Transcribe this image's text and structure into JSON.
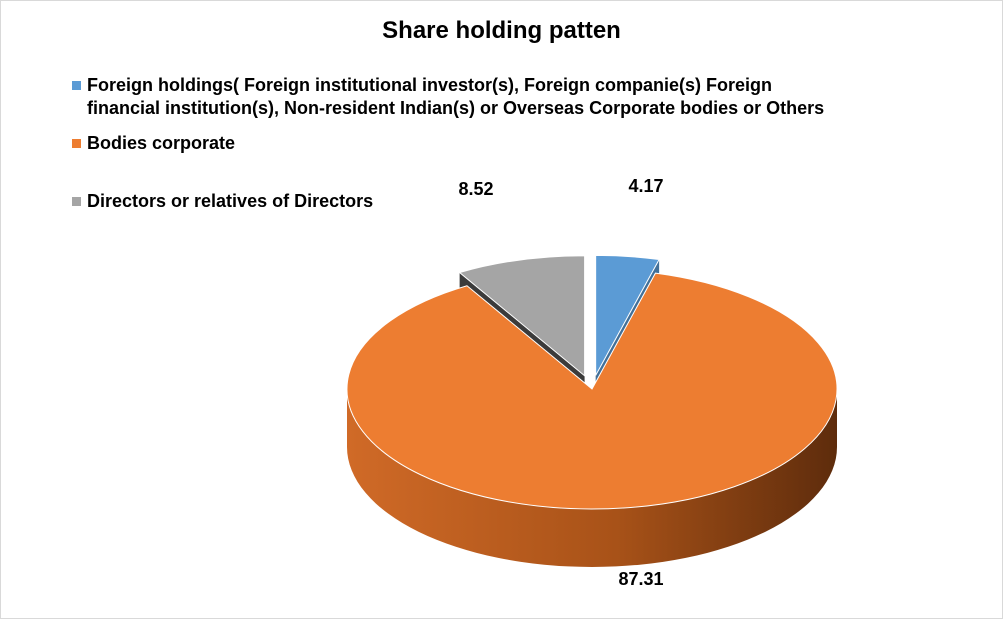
{
  "chart_data": {
    "type": "pie",
    "title": "Share holding patten",
    "style": "3d-exploded",
    "legend_position": "top",
    "slices": [
      {
        "name": "Foreign holdings( Foreign institutional investor(s), Foreign companie(s) Foreign financial institution(s), Non-resident Indian(s) or Overseas Corporate bodies or Others",
        "legend_line1": "Foreign holdings( Foreign institutional investor(s), Foreign companie(s) Foreign",
        "legend_line2": "financial institution(s), Non-resident Indian(s) or Overseas Corporate bodies or Others",
        "value": 4.17,
        "label": "4.17",
        "color": "#5b9bd5"
      },
      {
        "name": "Bodies corporate",
        "value": 87.31,
        "label": "87.31",
        "color": "#ed7d31"
      },
      {
        "name": "Directors or relatives of Directors",
        "value": 8.52,
        "label": "8.52",
        "color": "#a5a5a5"
      }
    ]
  }
}
